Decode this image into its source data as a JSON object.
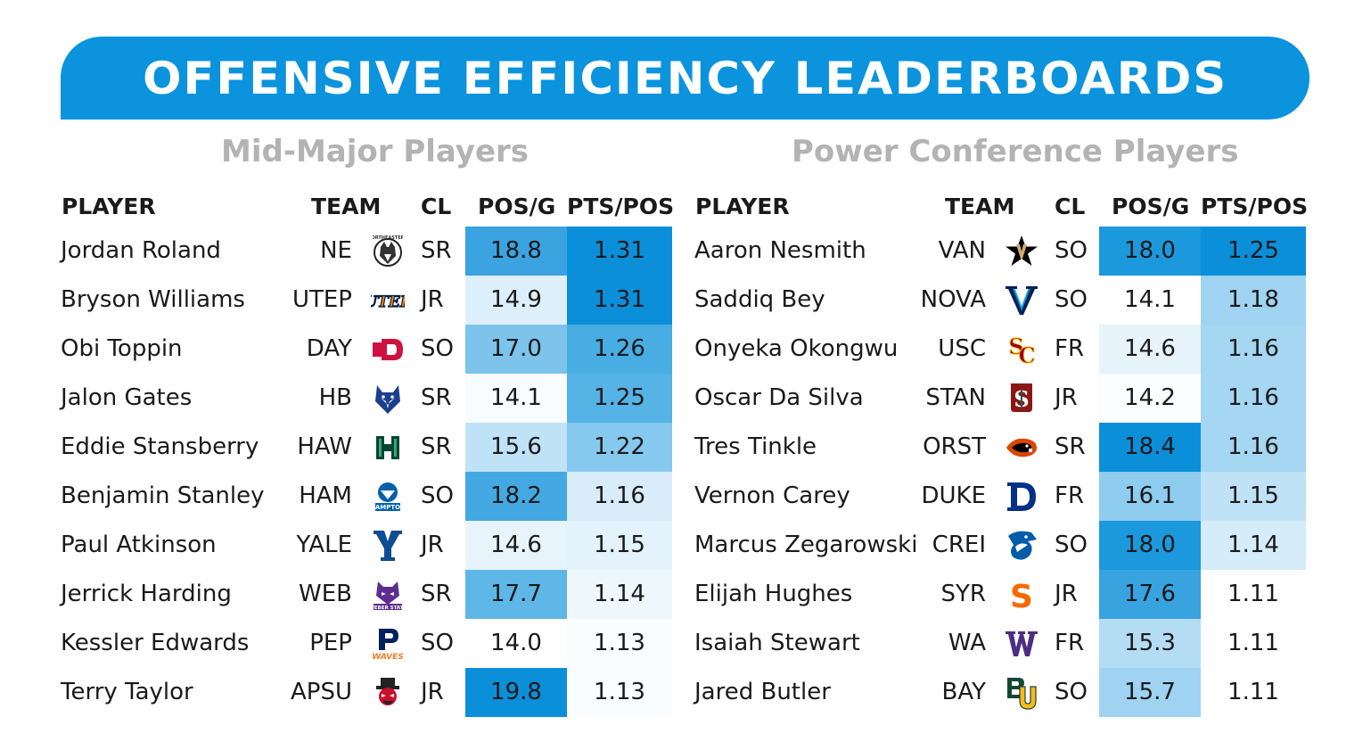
{
  "title": "OFFENSIVE EFFICIENCY LEADERBOARDS",
  "columns": {
    "player": "PLAYER",
    "team": "TEAM",
    "cl": "CL",
    "pos": "POS/G",
    "pts": "PTS/POS"
  },
  "left": {
    "subtitle": "Mid-Major Players",
    "rows": [
      {
        "player": "Jordan Roland",
        "team": "NE",
        "logo": "northeastern-husky-icon",
        "cl": "SR",
        "pos": "18.8",
        "pts": "1.31",
        "pos_color": "#3aa3e0",
        "pts_color": "#0b8fd9"
      },
      {
        "player": "Bryson Williams",
        "team": "UTEP",
        "logo": "utep-icon",
        "cl": "JR",
        "pos": "14.9",
        "pts": "1.31",
        "pos_color": "#ddeffa",
        "pts_color": "#0b8fd9"
      },
      {
        "player": "Obi Toppin",
        "team": "DAY",
        "logo": "dayton-flyers-icon",
        "cl": "SO",
        "pos": "17.0",
        "pts": "1.26",
        "pos_color": "#7cc4ec",
        "pts_color": "#48ade3"
      },
      {
        "player": "Jalon Gates",
        "team": "HB",
        "logo": "houston-baptist-husky-icon",
        "cl": "SR",
        "pos": "14.1",
        "pts": "1.25",
        "pos_color": "#f8fcfe",
        "pts_color": "#55b3e5"
      },
      {
        "player": "Eddie Stansberry",
        "team": "HAW",
        "logo": "hawaii-h-icon",
        "cl": "SR",
        "pos": "15.6",
        "pts": "1.22",
        "pos_color": "#bfe2f6",
        "pts_color": "#86c9ee"
      },
      {
        "player": "Benjamin Stanley",
        "team": "HAM",
        "logo": "hampton-pirates-icon",
        "cl": "SO",
        "pos": "18.2",
        "pts": "1.16",
        "pos_color": "#44a9e2",
        "pts_color": "#d8edf9"
      },
      {
        "player": "Paul Atkinson",
        "team": "YALE",
        "logo": "yale-y-icon",
        "cl": "JR",
        "pos": "14.6",
        "pts": "1.15",
        "pos_color": "#e8f4fb",
        "pts_color": "#e3f2fb"
      },
      {
        "player": "Jerrick Harding",
        "team": "WEB",
        "logo": "weber-state-wildcat-icon",
        "cl": "SR",
        "pos": "17.7",
        "pts": "1.14",
        "pos_color": "#5eb7e7",
        "pts_color": "#eef7fc"
      },
      {
        "player": "Kessler Edwards",
        "team": "PEP",
        "logo": "pepperdine-waves-icon",
        "cl": "SO",
        "pos": "14.0",
        "pts": "1.13",
        "pos_color": "#ffffff",
        "pts_color": "#fafdfe"
      },
      {
        "player": "Terry Taylor",
        "team": "APSU",
        "logo": "austin-peay-governor-icon",
        "cl": "JR",
        "pos": "19.8",
        "pts": "1.13",
        "pos_color": "#0b8fd9",
        "pts_color": "#fafdfe"
      }
    ]
  },
  "right": {
    "subtitle": "Power Conference Players",
    "rows": [
      {
        "player": "Aaron Nesmith",
        "team": "VAN",
        "logo": "vanderbilt-star-v-icon",
        "cl": "SO",
        "pos": "18.0",
        "pts": "1.25",
        "pos_color": "#1c98dc",
        "pts_color": "#0b8fd9"
      },
      {
        "player": "Saddiq Bey",
        "team": "NOVA",
        "logo": "villanova-v-icon",
        "cl": "SO",
        "pos": "14.1",
        "pts": "1.18",
        "pos_color": "#ffffff",
        "pts_color": "#9fd3f1"
      },
      {
        "player": "Onyeka Okongwu",
        "team": "USC",
        "logo": "usc-sc-icon",
        "cl": "FR",
        "pos": "14.6",
        "pts": "1.16",
        "pos_color": "#e6f3fb",
        "pts_color": "#a5d6f2"
      },
      {
        "player": "Oscar Da Silva",
        "team": "STAN",
        "logo": "stanford-s-icon",
        "cl": "JR",
        "pos": "14.2",
        "pts": "1.16",
        "pos_color": "#fbfdfe",
        "pts_color": "#a5d6f2"
      },
      {
        "player": "Tres Tinkle",
        "team": "ORST",
        "logo": "oregon-state-beaver-icon",
        "cl": "SR",
        "pos": "18.4",
        "pts": "1.16",
        "pos_color": "#0b8fd9",
        "pts_color": "#a5d6f2"
      },
      {
        "player": "Vernon Carey",
        "team": "DUKE",
        "logo": "duke-d-icon",
        "cl": "FR",
        "pos": "16.1",
        "pts": "1.15",
        "pos_color": "#8ecdef",
        "pts_color": "#bfe2f6"
      },
      {
        "player": "Marcus Zegarowski",
        "team": "CREI",
        "logo": "creighton-bluejay-icon",
        "cl": "SO",
        "pos": "18.0",
        "pts": "1.14",
        "pos_color": "#1c98dc",
        "pts_color": "#d5ecf9"
      },
      {
        "player": "Elijah Hughes",
        "team": "SYR",
        "logo": "syracuse-s-icon",
        "cl": "JR",
        "pos": "17.6",
        "pts": "1.11",
        "pos_color": "#39a3e0",
        "pts_color": "#ffffff"
      },
      {
        "player": "Isaiah Stewart",
        "team": "WA",
        "logo": "washington-w-icon",
        "cl": "FR",
        "pos": "15.3",
        "pts": "1.11",
        "pos_color": "#b4ddf4",
        "pts_color": "#ffffff"
      },
      {
        "player": "Jared Butler",
        "team": "BAY",
        "logo": "baylor-bu-icon",
        "cl": "SO",
        "pos": "15.7",
        "pts": "1.11",
        "pos_color": "#9fd3f1",
        "pts_color": "#ffffff"
      }
    ]
  },
  "colors": {
    "banner": "#0b93dd",
    "subtitle": "#b3b3b3"
  }
}
